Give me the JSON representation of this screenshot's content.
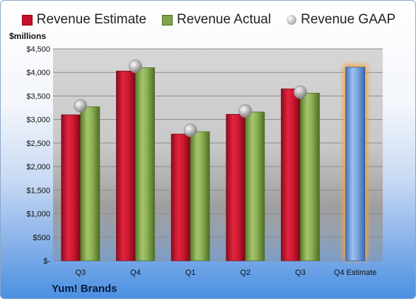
{
  "chart_data": {
    "type": "bar",
    "title": "",
    "unit_label": "$millions",
    "company": "Yum! Brands",
    "categories": [
      "Q3",
      "Q4",
      "Q1",
      "Q2",
      "Q3",
      "Q4 Estimate"
    ],
    "series": [
      {
        "name": "Revenue Estimate",
        "color": "#c8102e",
        "values": [
          3100,
          4030,
          2690,
          3110,
          3650,
          null
        ]
      },
      {
        "name": "Revenue Actual",
        "color": "#7fa64a",
        "values": [
          3270,
          4100,
          2740,
          3160,
          3560,
          null
        ]
      },
      {
        "name": "Revenue GAAP",
        "color": "#a0a0a0",
        "style": "marker",
        "values": [
          3290,
          4130,
          2770,
          3180,
          3580,
          null
        ]
      }
    ],
    "forecast": {
      "category": "Q4 Estimate",
      "value": 4110,
      "color": "#6a9ad8",
      "glow": "#f4a23c"
    },
    "yticks": [
      0,
      500,
      1000,
      1500,
      2000,
      2500,
      3000,
      3500,
      4000,
      4500
    ],
    "ytick_labels": [
      "$-",
      "$500",
      "$1,000",
      "$1,500",
      "$2,000",
      "$2,500",
      "$3,000",
      "$3,500",
      "$4,000",
      "$4,500"
    ],
    "ylim": [
      0,
      4500
    ],
    "grid": true,
    "legend_position": "top"
  }
}
